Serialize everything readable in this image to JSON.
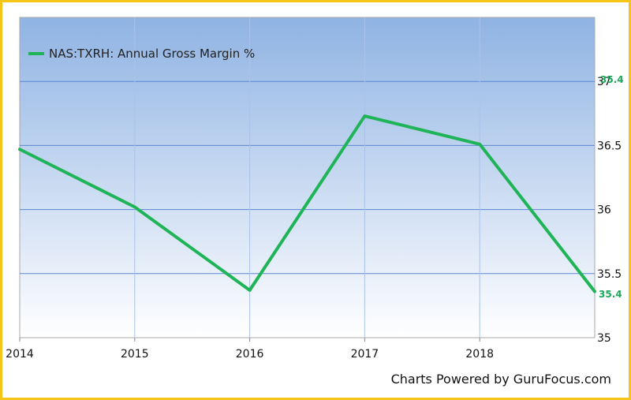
{
  "chart_data": {
    "type": "line",
    "x": [
      "2014",
      "2015",
      "2016",
      "2017",
      "2018",
      "2019"
    ],
    "x_tick_labels": [
      "2014",
      "2015",
      "2016",
      "2017",
      "2018"
    ],
    "series": [
      {
        "name": "NAS:TXRH: Annual Gross Margin %",
        "values": [
          36.47,
          36.02,
          35.37,
          36.73,
          36.51,
          35.36
        ],
        "color": "#1fb457"
      }
    ],
    "y_ticks": [
      "35",
      "35.5",
      "36",
      "36.5",
      "37"
    ],
    "ylim": [
      35,
      37.5
    ],
    "grid": true,
    "legend_position": "top-left",
    "end_labels": [
      "35.4",
      "35.4"
    ],
    "y_axis_side": "right",
    "background_gradient": [
      "#8fb3e3",
      "#ffffff"
    ]
  },
  "credit": "Charts Powered by GuruFocus.com"
}
